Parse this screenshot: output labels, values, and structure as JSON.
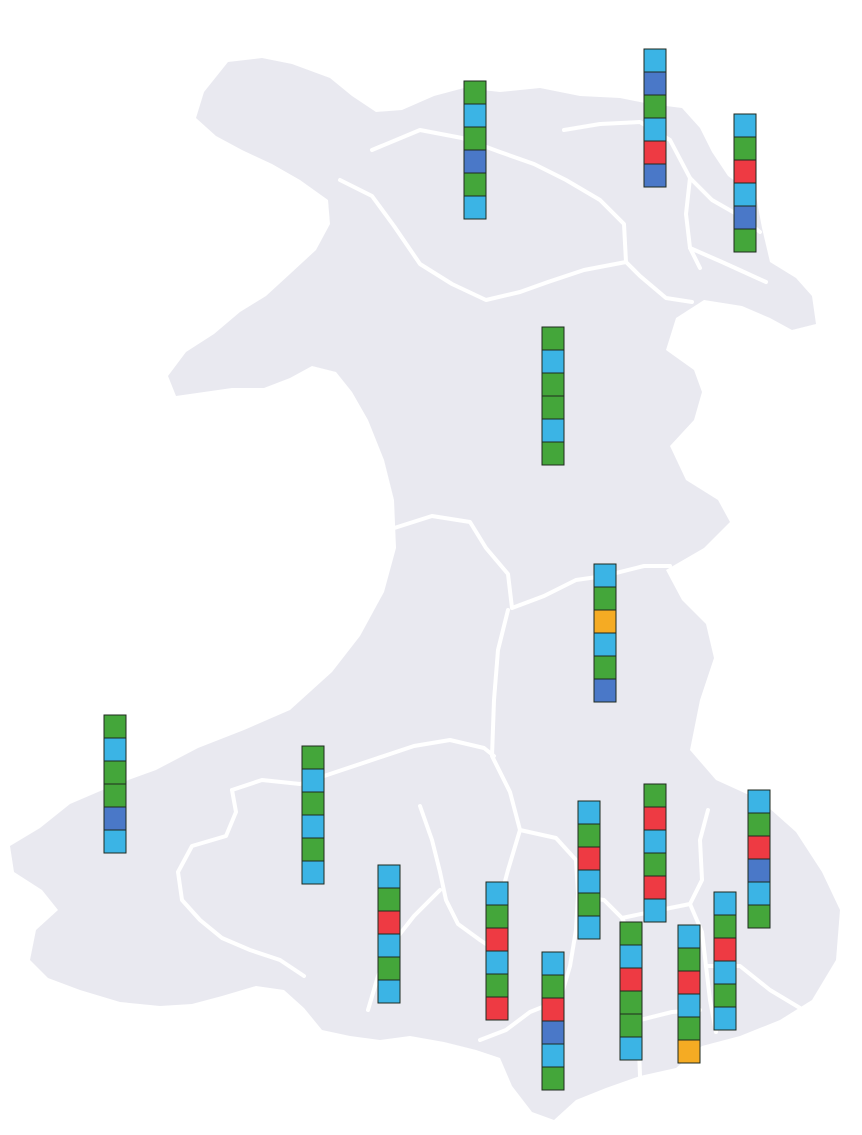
{
  "colors": {
    "land": "#e9e9f0",
    "border": "#ffffff",
    "green": "#44a63a",
    "lightblue": "#3bb4e5",
    "blue": "#4a78c8",
    "red": "#ee3a43",
    "orange": "#f5ab23"
  },
  "seat_stacks": [
    {
      "region": "anglesey-north-coast",
      "seats": [
        "green",
        "lightblue",
        "green",
        "blue",
        "green",
        "lightblue"
      ]
    },
    {
      "region": "flintshire-north",
      "seats": [
        "lightblue",
        "blue",
        "green",
        "lightblue",
        "red",
        "blue"
      ]
    },
    {
      "region": "wrexham",
      "seats": [
        "lightblue",
        "green",
        "red",
        "lightblue",
        "blue",
        "green"
      ]
    },
    {
      "region": "gwynedd-conwy-mid-north",
      "seats": [
        "green",
        "lightblue",
        "green",
        "green",
        "lightblue",
        "green"
      ]
    },
    {
      "region": "powys",
      "seats": [
        "lightblue",
        "green",
        "orange",
        "lightblue",
        "green",
        "blue"
      ]
    },
    {
      "region": "pembrokeshire",
      "seats": [
        "green",
        "lightblue",
        "green",
        "green",
        "blue",
        "lightblue"
      ]
    },
    {
      "region": "carmarthenshire",
      "seats": [
        "green",
        "lightblue",
        "green",
        "lightblue",
        "green",
        "lightblue"
      ]
    },
    {
      "region": "swansea-neath",
      "seats": [
        "lightblue",
        "green",
        "red",
        "lightblue",
        "green",
        "lightblue"
      ]
    },
    {
      "region": "neath-port-talbot",
      "seats": [
        "lightblue",
        "green",
        "red",
        "lightblue",
        "green",
        "red"
      ]
    },
    {
      "region": "bridgend",
      "seats": [
        "lightblue",
        "green",
        "red",
        "blue",
        "lightblue",
        "green"
      ]
    },
    {
      "region": "rhondda-cynon-taf",
      "seats": [
        "lightblue",
        "green",
        "red",
        "lightblue",
        "green",
        "lightblue"
      ]
    },
    {
      "region": "merthyr-caerphilly",
      "seats": [
        "green",
        "red",
        "lightblue",
        "green",
        "red",
        "lightblue"
      ]
    },
    {
      "region": "cardiff-west",
      "seats": [
        "green",
        "lightblue",
        "red",
        "green",
        "green",
        "lightblue"
      ]
    },
    {
      "region": "cardiff-east",
      "seats": [
        "lightblue",
        "green",
        "red",
        "lightblue",
        "green",
        "orange"
      ]
    },
    {
      "region": "newport",
      "seats": [
        "lightblue",
        "green",
        "red",
        "lightblue",
        "green",
        "lightblue"
      ]
    },
    {
      "region": "monmouthshire",
      "seats": [
        "lightblue",
        "green",
        "red",
        "blue",
        "lightblue",
        "green"
      ]
    }
  ]
}
